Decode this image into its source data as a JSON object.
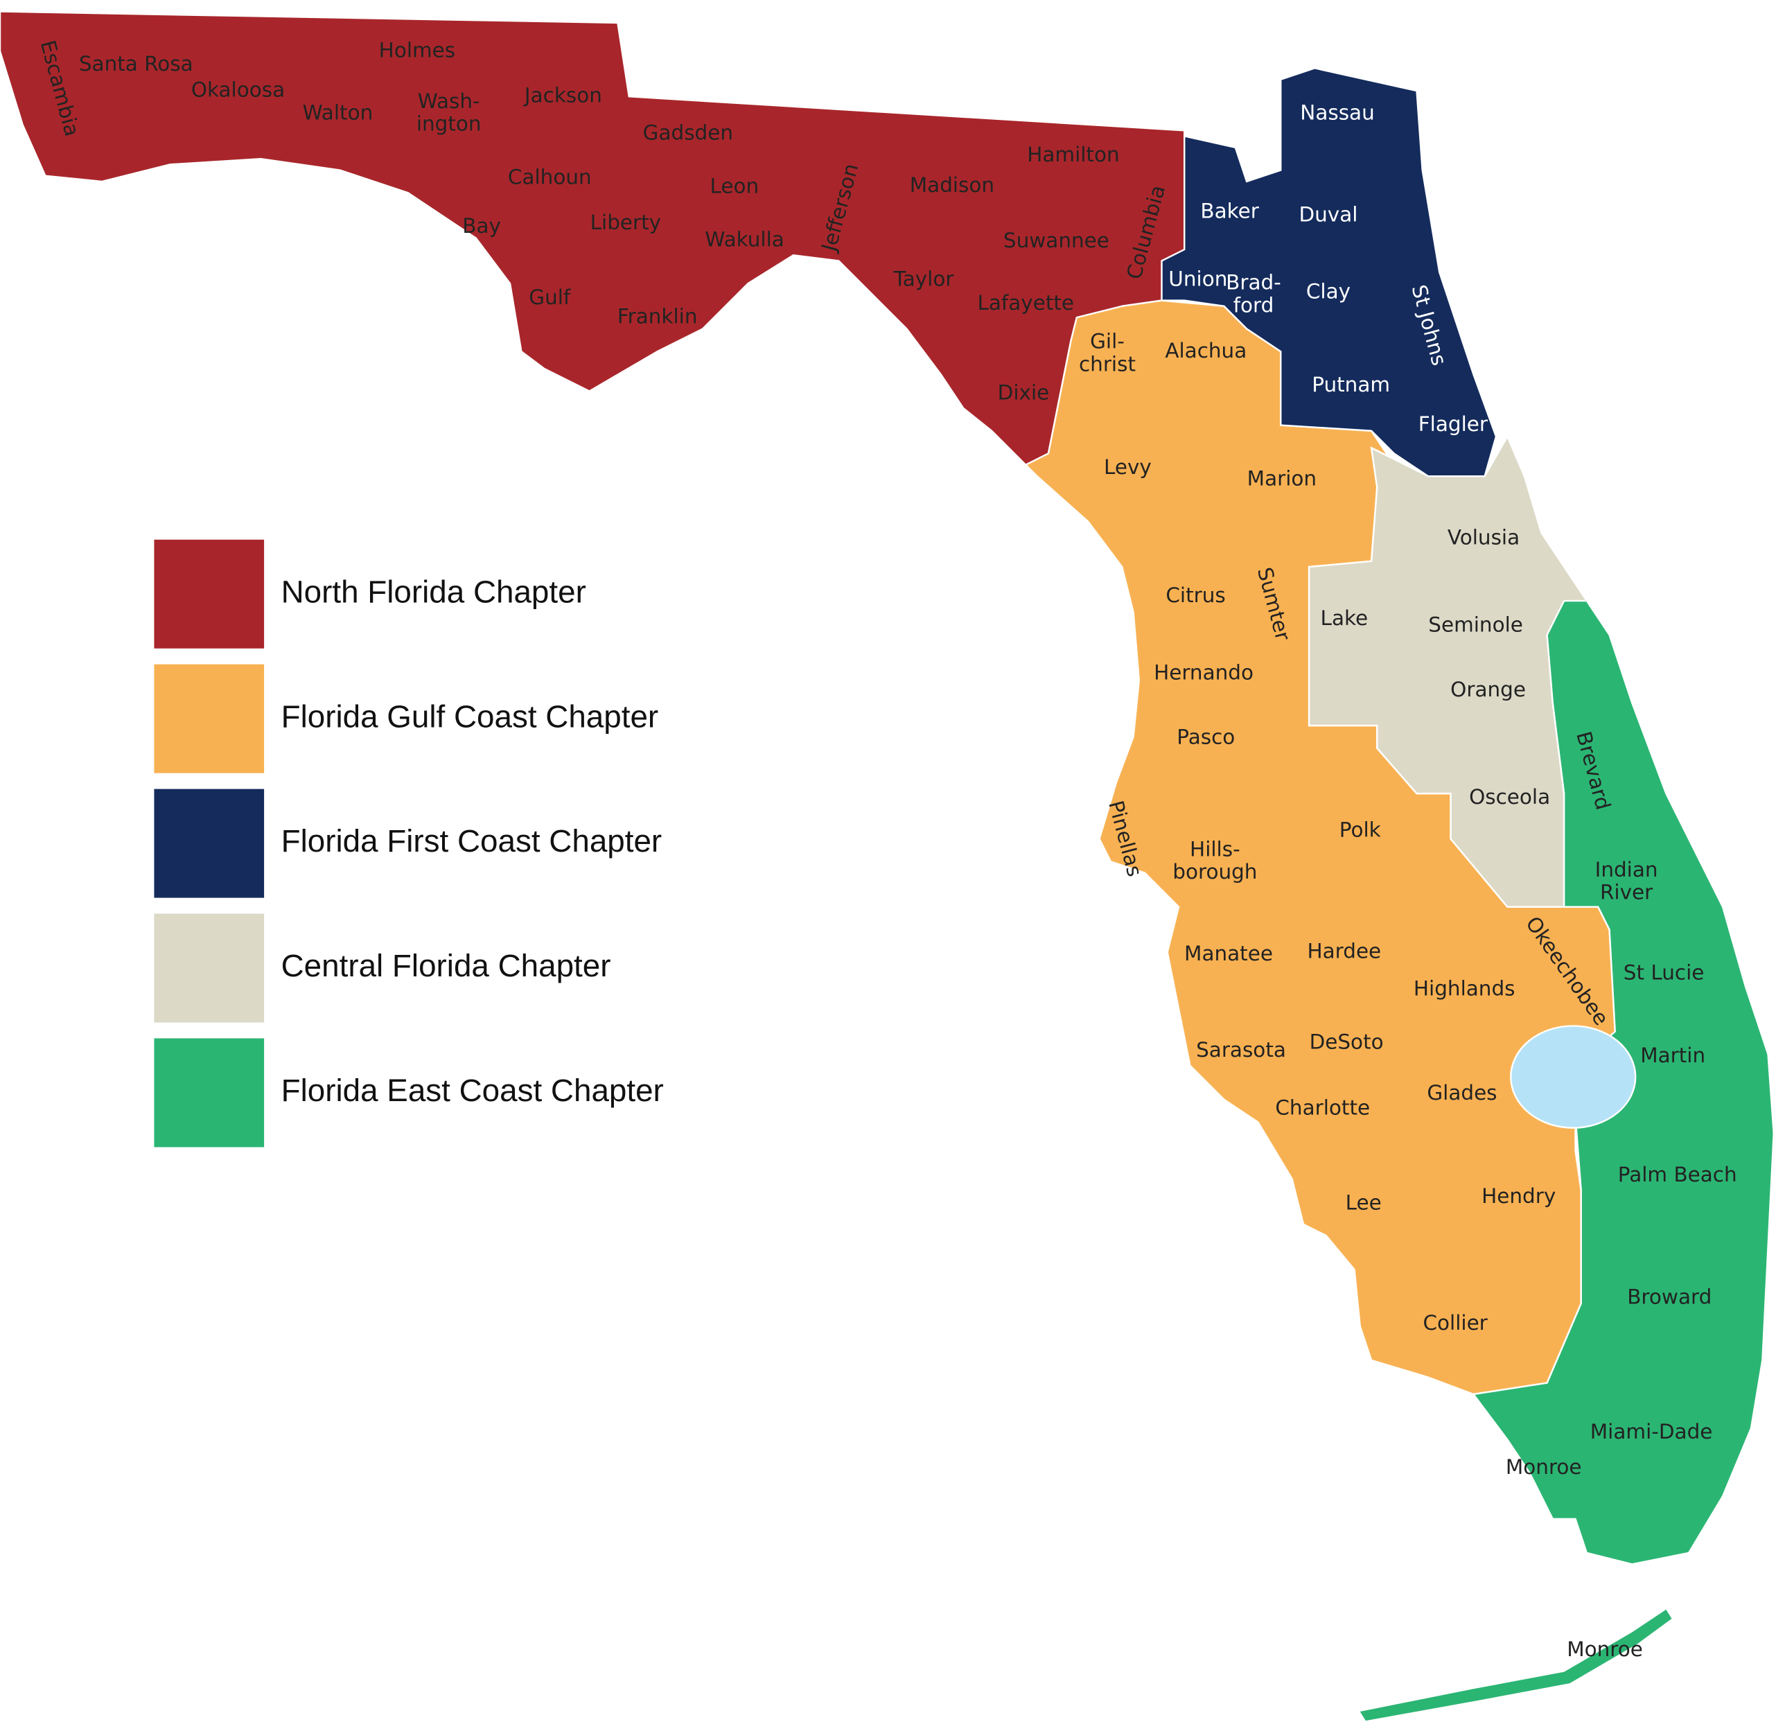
{
  "legend": [
    {
      "label": "North Florida Chapter",
      "color": "#a8262b",
      "counties": [
        [
          "Escambia"
        ],
        [
          "Santa Rosa"
        ],
        [
          "Okaloosa"
        ],
        [
          "Walton"
        ],
        [
          "Holmes"
        ],
        [
          "Wash-",
          "ington"
        ],
        [
          "Jackson"
        ],
        [
          "Bay"
        ],
        [
          "Calhoun"
        ],
        [
          "Gadsden"
        ],
        [
          "Liberty"
        ],
        [
          "Leon"
        ],
        [
          "Wakulla"
        ],
        [
          "Gulf"
        ],
        [
          "Franklin"
        ],
        [
          "Jefferson"
        ],
        [
          "Madison"
        ],
        [
          "Taylor"
        ],
        [
          "Hamilton"
        ],
        [
          "Suwannee"
        ],
        [
          "Lafayette"
        ],
        [
          "Columbia"
        ],
        [
          "Dixie"
        ]
      ]
    },
    {
      "label": "Florida Gulf Coast Chapter",
      "color": "#f8b152",
      "counties": [
        [
          "Gil-",
          "christ"
        ],
        [
          "Alachua"
        ],
        [
          "Levy"
        ],
        [
          "Marion"
        ],
        [
          "Citrus"
        ],
        [
          "Sumter"
        ],
        [
          "Hernando"
        ],
        [
          "Pasco"
        ],
        [
          "Pinellas"
        ],
        [
          "Hills-",
          "borough"
        ],
        [
          "Polk"
        ],
        [
          "Manatee"
        ],
        [
          "Hardee"
        ],
        [
          "Highlands"
        ],
        [
          "Okeechobee"
        ],
        [
          "Sarasota"
        ],
        [
          "DeSoto"
        ],
        [
          "Glades"
        ],
        [
          "Charlotte"
        ],
        [
          "Lee"
        ],
        [
          "Hendry"
        ],
        [
          "Collier"
        ]
      ]
    },
    {
      "label": "Florida First Coast Chapter",
      "color": "#142b5c",
      "counties": [
        [
          "Nassau"
        ],
        [
          "Baker"
        ],
        [
          "Duval"
        ],
        [
          "Union"
        ],
        [
          "Brad-",
          "ford"
        ],
        [
          "Clay"
        ],
        [
          "St Johns"
        ],
        [
          "Putnam"
        ],
        [
          "Flagler"
        ]
      ]
    },
    {
      "label": "Central Florida Chapter",
      "color": "#dcd9c7",
      "counties": [
        [
          "Volusia"
        ],
        [
          "Lake"
        ],
        [
          "Seminole"
        ],
        [
          "Orange"
        ],
        [
          "Osceola"
        ]
      ]
    },
    {
      "label": "Florida East Coast Chapter",
      "color": "#2bb573",
      "counties": [
        [
          "Brevard"
        ],
        [
          "Indian",
          "River"
        ],
        [
          "St Lucie"
        ],
        [
          "Martin"
        ],
        [
          "Palm Beach"
        ],
        [
          "Broward"
        ],
        [
          "Miami-Dade"
        ],
        [
          "Monroe"
        ],
        [
          "Monroe"
        ]
      ]
    }
  ]
}
